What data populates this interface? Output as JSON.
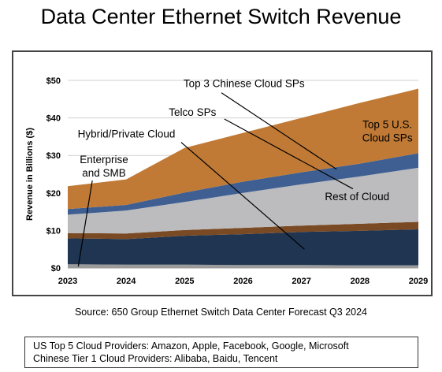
{
  "page": {
    "title": "Data Center Ethernet Switch Revenue",
    "source": "Source: 650 Group Ethernet Switch Data Center Forecast Q3 2024",
    "footnotes": [
      "US Top 5 Cloud Providers: Amazon, Apple, Facebook, Google, Microsoft",
      "Chinese Tier 1 Cloud Providers: Alibaba, Baidu, Tencent"
    ]
  },
  "chart_data": {
    "type": "area",
    "stacked": true,
    "title": "",
    "ylabel": "Revenue in Billions ($)",
    "xlabel": "",
    "x": [
      "2023",
      "2024",
      "2025",
      "2026",
      "2027",
      "2028",
      "2029"
    ],
    "ylim": [
      0,
      50
    ],
    "yticks": [
      0,
      10,
      20,
      30,
      40,
      50
    ],
    "ytick_labels": [
      "$0",
      "$10",
      "$20",
      "$30",
      "$40",
      "$50"
    ],
    "grid": true,
    "series": [
      {
        "name": "Enterprise and SMB",
        "color": "#9b9b9b",
        "values": [
          1.0,
          0.9,
          0.9,
          0.8,
          0.8,
          0.7,
          0.7
        ]
      },
      {
        "name": "Hybrid/Private Cloud",
        "color": "#1f3552",
        "values": [
          6.9,
          6.8,
          7.7,
          8.2,
          8.8,
          9.2,
          9.6
        ]
      },
      {
        "name": "Telco SPs",
        "color": "#7a4a24",
        "values": [
          1.4,
          1.5,
          1.5,
          1.7,
          1.7,
          1.9,
          2.0
        ]
      },
      {
        "name": "Rest of Cloud",
        "color": "#bcbcbe",
        "values": [
          4.9,
          6.1,
          7.5,
          9.3,
          11.0,
          12.6,
          14.4
        ]
      },
      {
        "name": "Top 3 Chinese Cloud SPs",
        "color": "#3f5f93",
        "values": [
          1.5,
          1.5,
          2.5,
          3.0,
          3.2,
          3.4,
          3.9
        ]
      },
      {
        "name": "Top 5 U.S. Cloud SPs",
        "color": "#c07a35",
        "values": [
          6.1,
          6.8,
          11.9,
          13.0,
          14.5,
          16.2,
          17.2
        ]
      }
    ],
    "annotations": [
      {
        "id": "top3",
        "text": "Top 3 Chinese Cloud SPs",
        "lines": [
          "Top 3 Chinese Cloud SPs"
        ],
        "anchor": "start",
        "label_x": 2024.98,
        "label_y": 48.2,
        "leader": [
          2025.63,
          46.7,
          2027.6,
          26.3
        ]
      },
      {
        "id": "telco",
        "text": "Telco SPs",
        "lines": [
          "Telco SPs"
        ],
        "anchor": "start",
        "label_x": 2024.73,
        "label_y": 40.5,
        "leader": [
          2025.68,
          39.7,
          2027.88,
          21.1
        ]
      },
      {
        "id": "top5us",
        "lines": [
          "Top 5 U.S.",
          "Cloud SPs"
        ],
        "anchor": "middle",
        "label_x": 2028.47,
        "label_y": 37.3
      },
      {
        "id": "rest",
        "text": "Rest of Cloud",
        "lines": [
          "Rest of Cloud"
        ],
        "anchor": "start",
        "label_x": 2027.4,
        "label_y": 18.1
      },
      {
        "id": "hybrid",
        "text": "Hybrid/Private Cloud",
        "lines": [
          "Hybrid/Private Cloud"
        ],
        "anchor": "start",
        "label_x": 2023.17,
        "label_y": 34.8,
        "leader": [
          2024.94,
          33.5,
          2027.05,
          5.0
        ]
      },
      {
        "id": "ent",
        "lines": [
          "Enterprise",
          "and SMB"
        ],
        "anchor": "middle",
        "label_x": 2023.62,
        "label_y": 27.9,
        "leader": [
          2023.42,
          23.3,
          2023.18,
          0.4
        ]
      }
    ]
  }
}
